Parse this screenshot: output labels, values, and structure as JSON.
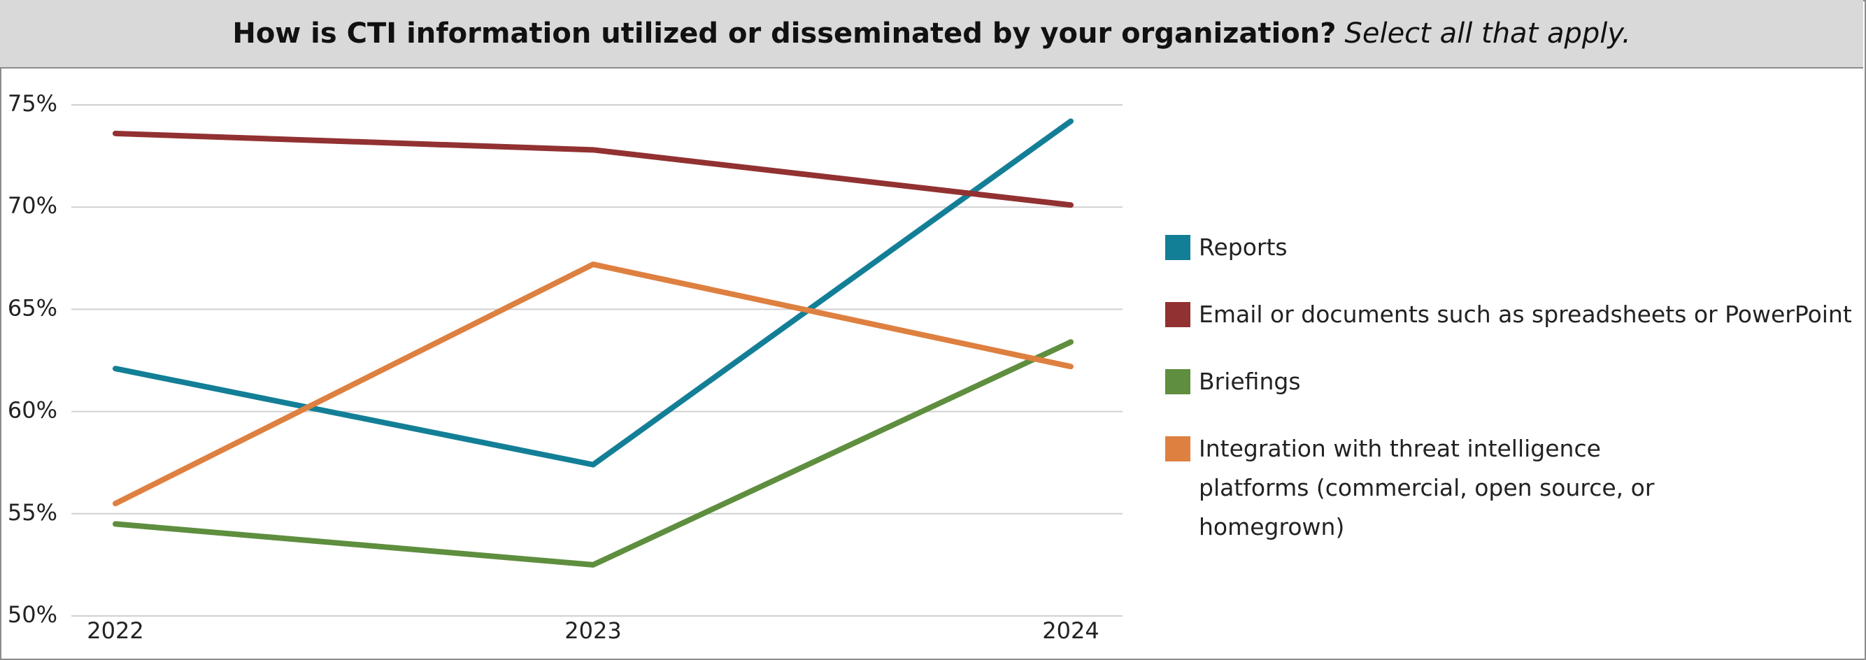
{
  "chart_data": {
    "type": "line",
    "title": "How is CTI information utilized or disseminated by your organization?",
    "title_note": "Select all that apply.",
    "categories": [
      "2022",
      "2023",
      "2024"
    ],
    "series": [
      {
        "name": "Reports",
        "color": "#137f97",
        "values": [
          62.1,
          57.4,
          74.2
        ]
      },
      {
        "name": "Email or documents such as spreadsheets or PowerPoint",
        "color": "#923131",
        "values": [
          73.6,
          72.8,
          70.1
        ]
      },
      {
        "name": "Briefings",
        "color": "#5e8e3e",
        "values": [
          54.5,
          52.5,
          63.4
        ]
      },
      {
        "name": "Integration with threat intelligence platforms (commercial, open source, or homegrown)",
        "color": "#de8040",
        "values": [
          55.5,
          67.2,
          62.2
        ]
      }
    ],
    "ylim": [
      50,
      75
    ],
    "yticks": [
      {
        "value": 50,
        "label": "50%"
      },
      {
        "value": 55,
        "label": "55%"
      },
      {
        "value": 60,
        "label": "60%"
      },
      {
        "value": 65,
        "label": "65%"
      },
      {
        "value": 70,
        "label": "70%"
      },
      {
        "value": 75,
        "label": "75%"
      }
    ],
    "grid": true,
    "legend": "right"
  }
}
